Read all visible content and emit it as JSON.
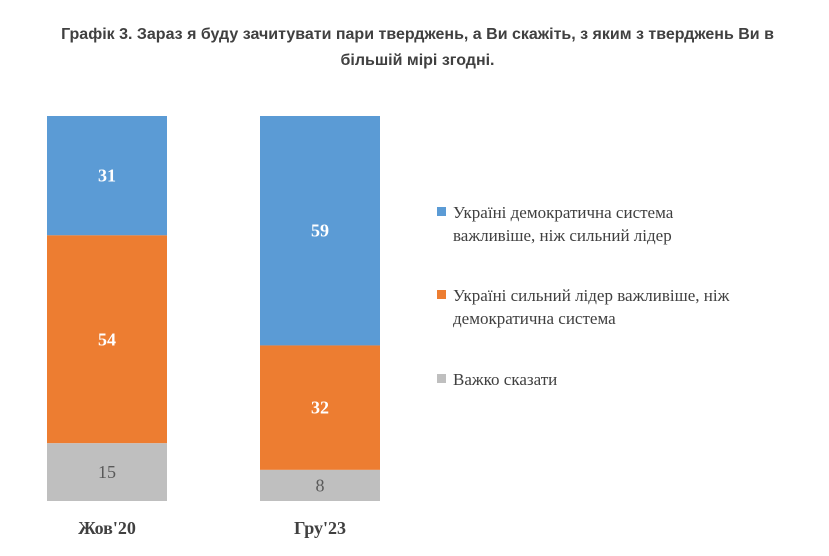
{
  "title_line1": "Графік 3. Зараз я буду зачитувати пари тверджень, а Ви скажіть, з яким з тверджень Ви в",
  "title_line2": "більшій мірі згодні.",
  "chart_data": {
    "type": "bar",
    "stacked": true,
    "categories": [
      "Жов'20",
      "Гру'23"
    ],
    "series": [
      {
        "name": "Україні демократична система важливіше, ніж сильний лідер",
        "values": [
          31,
          59
        ],
        "color": "#5B9BD5",
        "label_color": "#ffffff"
      },
      {
        "name": "Україні сильний лідер важливіше, ніж демократична система",
        "values": [
          54,
          32
        ],
        "color": "#ED7D31",
        "label_color": "#ffffff"
      },
      {
        "name": "Важко сказати",
        "values": [
          15,
          8
        ],
        "color": "#BFBFBF",
        "label_color": "#595959"
      }
    ],
    "legend_position": "right",
    "grid": false
  }
}
